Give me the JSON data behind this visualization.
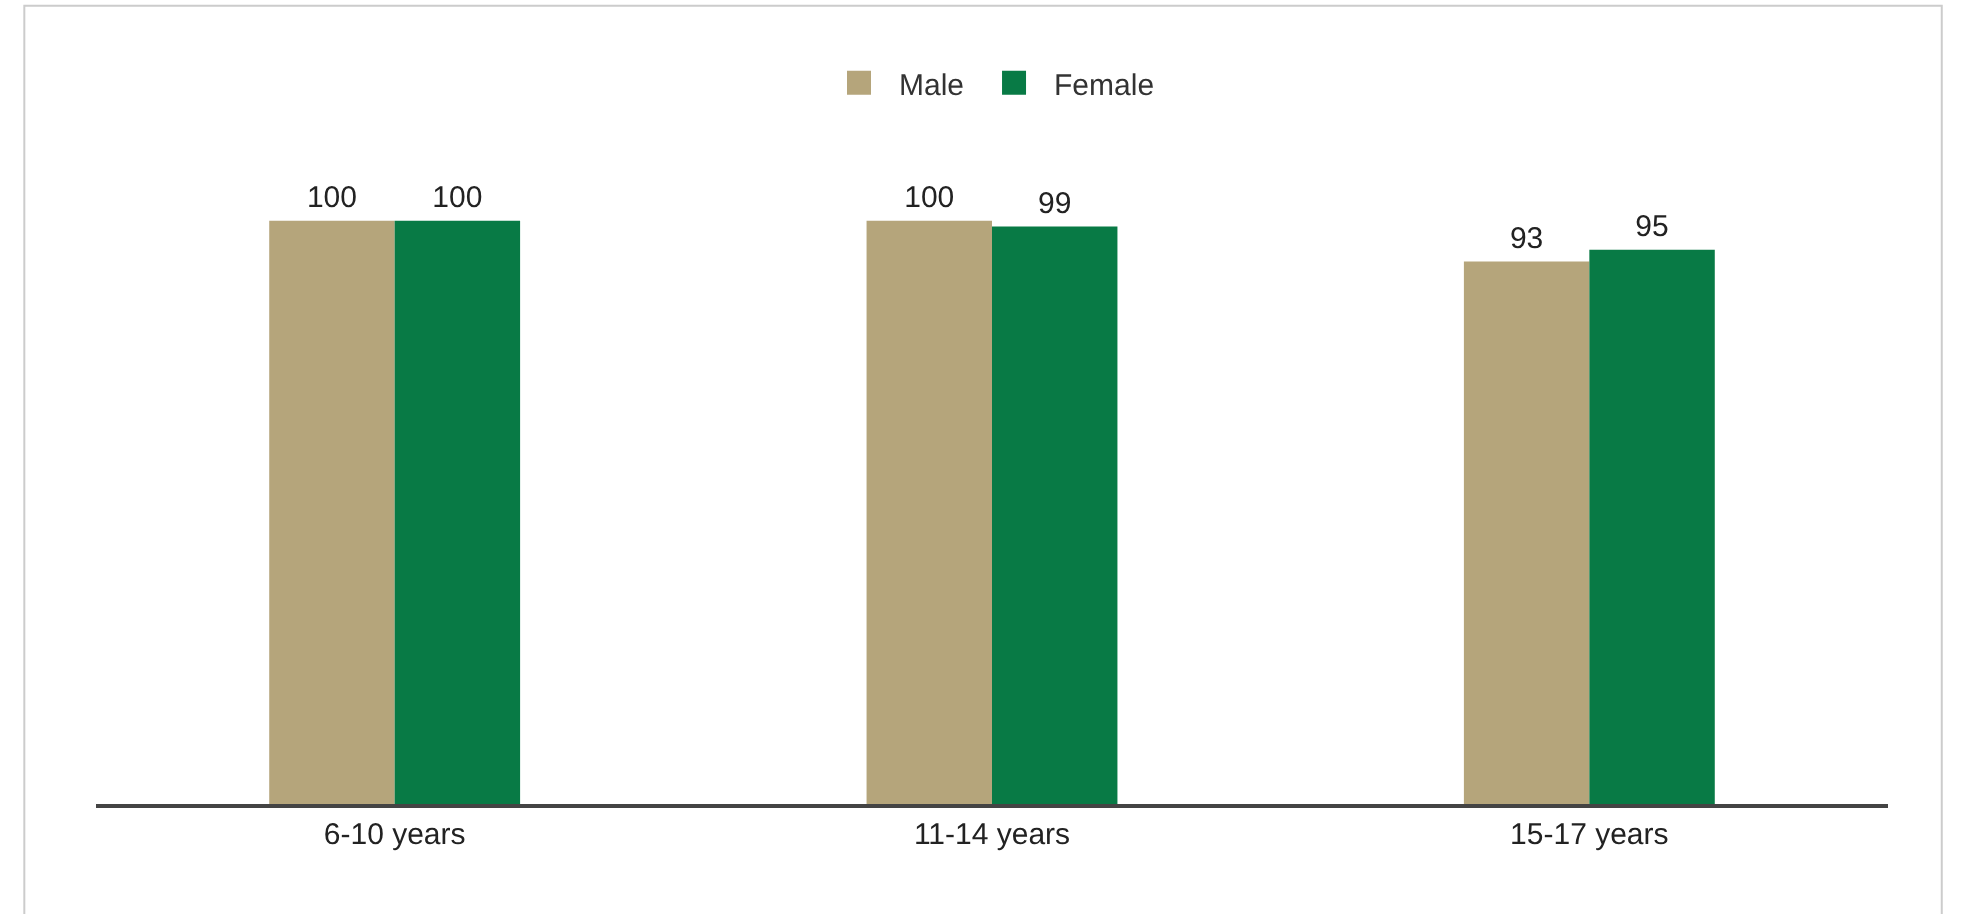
{
  "chart_data": {
    "type": "bar",
    "categories": [
      "6-10 years",
      "11-14 years",
      "15-17 years"
    ],
    "series": [
      {
        "name": "Male",
        "color": "#b5a57b",
        "values": [
          100,
          100,
          93
        ]
      },
      {
        "name": "Female",
        "color": "#087a45",
        "values": [
          100,
          99,
          95
        ]
      }
    ],
    "data_labels": true,
    "legend": "top",
    "grid": false,
    "tick_labels": "x"
  }
}
